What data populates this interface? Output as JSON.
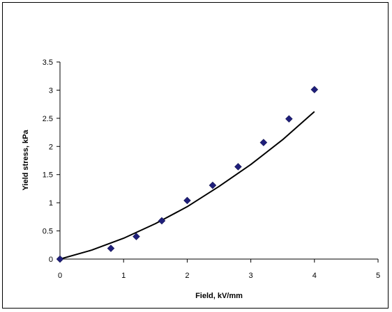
{
  "chart_data": {
    "type": "scatter",
    "xlabel": "Field, kV/mm",
    "ylabel": "Yield stress, kPa",
    "xlim": [
      0,
      5
    ],
    "ylim": [
      0,
      3.5
    ],
    "x_ticks": [
      "0",
      "1",
      "2",
      "3",
      "4",
      "5"
    ],
    "y_ticks": [
      "0",
      "0.5",
      "1",
      "1.5",
      "2",
      "2.5",
      "3",
      "3.5"
    ],
    "grid": false,
    "legend": "none",
    "series": [
      {
        "kind": "markers",
        "marker": "diamond",
        "color": "#1f1f7a",
        "x": [
          0,
          0.8,
          1.2,
          1.6,
          2.0,
          2.4,
          2.8,
          3.2,
          3.6,
          4.0
        ],
        "y": [
          0,
          0.19,
          0.4,
          0.68,
          1.04,
          1.31,
          1.64,
          2.07,
          2.49,
          3.01
        ]
      },
      {
        "kind": "fit-curve",
        "color": "#000000",
        "x": [
          0,
          0.5,
          1.0,
          1.5,
          2.0,
          2.5,
          3.0,
          3.5,
          4.0
        ],
        "y": [
          0,
          0.16,
          0.37,
          0.63,
          0.93,
          1.29,
          1.68,
          2.12,
          2.62
        ]
      }
    ]
  }
}
